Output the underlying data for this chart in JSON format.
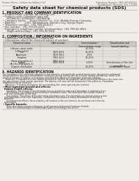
{
  "bg_color": "#f0ede8",
  "header_left": "Product Name: Lithium Ion Battery Cell",
  "header_right_line1": "Substance Number: SBR-049-00019",
  "header_right_line2": "Established / Revision: Dec.1.2009",
  "title": "Safety data sheet for chemical products (SDS)",
  "s1_header": "1. PRODUCT AND COMPANY IDENTIFICATION",
  "s1_lines": [
    "• Product name: Lithium Ion Battery Cell",
    "• Product code: Cylindrical type cell",
    "     SV18650U, SV18650U, SV18650A",
    "• Company name:     Sanyo Electric Co., Ltd., Mobile Energy Company",
    "• Address:           2001, Kamikabeya, Sumoto City, Hyogo, Japan",
    "• Telephone number:  +81-799-26-4111",
    "• Fax number:  +81-799-26-4123",
    "• Emergency telephone number (daytime/day): +81-799-26-3662",
    "     (Night and holiday): +81-799-26-3101"
  ],
  "s2_header": "2. COMPOSITION / INFORMATION ON INGREDIENTS",
  "s2_line1": "• Substance or preparation: Preparation",
  "s2_line2": "• Information about the chemical nature of product:",
  "tbl_col0": "Chemical name",
  "tbl_col1": "CAS number",
  "tbl_col2": "Concentration /\nConcentration range",
  "tbl_col3": "Classification and\nhazard labeling",
  "tbl_rows": [
    [
      "Lithium cobalt oxide\n(LiMn-CoO2)",
      "-",
      "30-50%",
      "-"
    ],
    [
      "Iron",
      "7439-89-6",
      "15-25%",
      "-"
    ],
    [
      "Aluminum",
      "7429-90-5",
      "2-5%",
      "-"
    ],
    [
      "Graphite\n(Kind of graphite-1)\n(Art.No of graphite-1)",
      "7782-42-5\n7782-42-5",
      "10-20%",
      "-"
    ],
    [
      "Copper",
      "7440-50-8",
      "5-15%",
      "Sensitization of the skin\ngroup No.2"
    ],
    [
      "Organic electrolyte",
      "-",
      "10-20%",
      "Inflammable liquid"
    ]
  ],
  "s3_header": "3. HAZARDS IDENTIFICATION",
  "s3_body": [
    "For the battery cell, chemical substances are stored in a hermetically sealed metal case, designed to withstand",
    "temperatures in pressure-temperature-conditions during normal use. As a result, during normal use, there is no",
    "physical danger of ignition or explosion and therefore danger of hazardous materials leakage.",
    "    However, if exposed to a fire, added mechanical shocks, decomposed, when electrolyte solutions dry mass use,",
    "the gas release vents can be operated. The battery cell case will be breached of fire patterns. Hazardous",
    "materials may be released.",
    "    Moreover, if heated strongly by the surrounding fire, some gas may be emitted."
  ],
  "s3_hazard": "• Most important hazard and effects:",
  "s3_human": "Human health effects:",
  "s3_human_body": [
    "    Inhalation: The release of the electrolyte has an anesthesia action and stimulates a respiratory tract.",
    "    Skin contact: The release of the electrolyte stimulates a skin. The electrolyte skin contact causes a",
    "sore and stimulation on the skin.",
    "    Eye contact: The release of the electrolyte stimulates eyes. The electrolyte eye contact causes a sore",
    "and stimulation on the eye. Especially, a substance that causes a strong inflammation of the eye is",
    "contained.",
    "    Environmental effects: Since a battery cell remains in the environment, do not throw out it into the",
    "environment."
  ],
  "s3_specific": "• Specific hazards:",
  "s3_specific_body": [
    "    If the electrolyte contacts with water, it will generate detrimental hydrogen fluoride.",
    "    Since the seal electrolyte is inflammable liquid, do not bring close to fire."
  ]
}
